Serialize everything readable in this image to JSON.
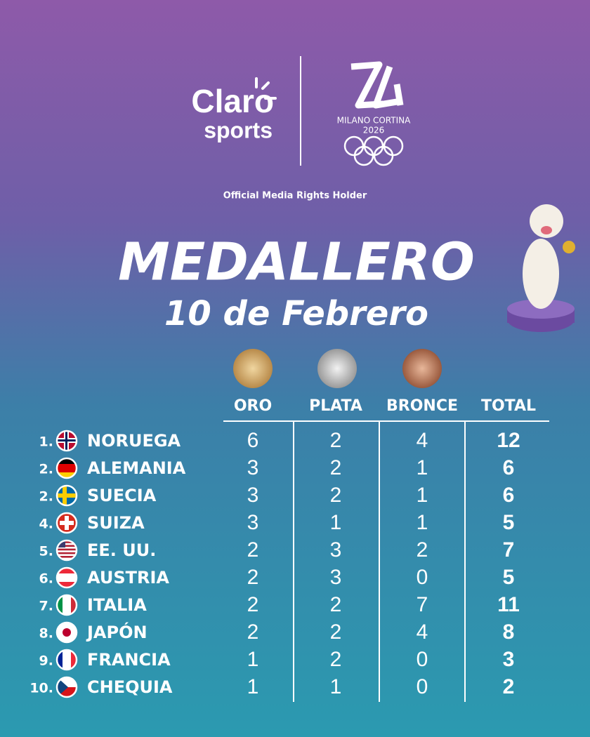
{
  "header": {
    "brand": "Claro",
    "brand_sub": "sports",
    "event": "MILANO CORTINA",
    "year": "2026",
    "rights": "Official Media Rights Holder"
  },
  "title": "MEDALLERO",
  "subtitle": "10 de Febrero",
  "table": {
    "columns": [
      "ORO",
      "PLATA",
      "BRONCE",
      "TOTAL"
    ],
    "rows": [
      {
        "rank": "1.",
        "country": "NORUEGA",
        "values": [
          6,
          2,
          4,
          12
        ]
      },
      {
        "rank": "2.",
        "country": "ALEMANIA",
        "values": [
          3,
          2,
          1,
          6
        ]
      },
      {
        "rank": "2.",
        "country": "SUECIA",
        "values": [
          3,
          2,
          1,
          6
        ]
      },
      {
        "rank": "4.",
        "country": "SUIZA",
        "values": [
          3,
          1,
          1,
          5
        ]
      },
      {
        "rank": "5.",
        "country": "EE. UU.",
        "values": [
          2,
          3,
          2,
          7
        ]
      },
      {
        "rank": "6.",
        "country": "AUSTRIA",
        "values": [
          2,
          3,
          0,
          5
        ]
      },
      {
        "rank": "7.",
        "country": "ITALIA",
        "values": [
          2,
          2,
          7,
          11
        ]
      },
      {
        "rank": "8.",
        "country": "JAPÓN",
        "values": [
          2,
          2,
          4,
          8
        ]
      },
      {
        "rank": "9.",
        "country": "FRANCIA",
        "values": [
          1,
          2,
          0,
          3
        ]
      },
      {
        "rank": "10.",
        "country": "CHEQUIA",
        "values": [
          1,
          1,
          0,
          2
        ]
      }
    ]
  }
}
